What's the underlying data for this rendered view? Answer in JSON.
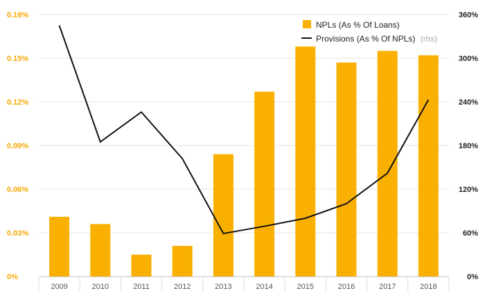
{
  "chart_data": {
    "type": "bar+line",
    "categories": [
      "2009",
      "2010",
      "2011",
      "2012",
      "2013",
      "2014",
      "2015",
      "2016",
      "2017",
      "2018"
    ],
    "series": [
      {
        "name": "NPLs (As % Of Loans)",
        "type": "bar",
        "axis": "left",
        "values": [
          0.041,
          0.036,
          0.015,
          0.021,
          0.084,
          0.127,
          0.158,
          0.147,
          0.155,
          0.152
        ]
      },
      {
        "name": "Provisions (As % Of NPLs)",
        "type": "line",
        "axis": "right",
        "values": [
          345,
          185,
          226,
          162,
          59,
          69,
          80,
          100,
          142,
          243
        ]
      }
    ],
    "legend": {
      "bar_label": "NPLs (As % Of Loans)",
      "line_label": "Provisions (As % Of NPLs)",
      "line_note": "(rhs)",
      "position": "top-right"
    },
    "y_left": {
      "ylim": [
        0,
        0.18
      ],
      "ticks": [
        0,
        0.03,
        0.06,
        0.09,
        0.12,
        0.15,
        0.18
      ],
      "tick_labels": [
        "0%",
        "0.03%",
        "0.06%",
        "0.09%",
        "0.12%",
        "0.15%",
        "0.18%"
      ]
    },
    "y_right": {
      "ylim": [
        0,
        360
      ],
      "ticks": [
        0,
        60,
        120,
        180,
        240,
        300,
        360
      ],
      "tick_labels": [
        "0%",
        "60%",
        "120%",
        "180%",
        "240%",
        "300%",
        "360%"
      ]
    },
    "grid": true,
    "colors": {
      "bar": "#f9b000",
      "line": "#111111",
      "left_axis_labels": "#f5a800",
      "right_axis_labels": "#222222",
      "grid": "#e6e6e6"
    }
  }
}
